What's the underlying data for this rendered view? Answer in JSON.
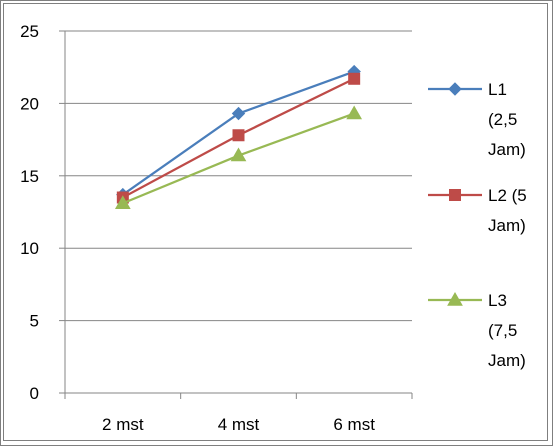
{
  "chart_data": {
    "type": "line",
    "categories": [
      "2 mst",
      "4 mst",
      "6 mst"
    ],
    "ylim": [
      0,
      25
    ],
    "yticks": [
      "0",
      "5",
      "10",
      "15",
      "20",
      "25"
    ],
    "grid": true,
    "legend_position": "right",
    "series": [
      {
        "name_lines": [
          "L1",
          "(2,5",
          "Jam)"
        ],
        "values": [
          13.7,
          19.3,
          22.2
        ],
        "color": "#4a7ebb",
        "marker": "diamond"
      },
      {
        "name_lines": [
          "L2 (5",
          "Jam)"
        ],
        "values": [
          13.5,
          17.8,
          21.7
        ],
        "color": "#be4b48",
        "marker": "square"
      },
      {
        "name_lines": [
          "L3",
          "(7,5",
          "Jam)"
        ],
        "values": [
          13.1,
          16.4,
          19.3
        ],
        "color": "#98b954",
        "marker": "triangle"
      }
    ]
  }
}
